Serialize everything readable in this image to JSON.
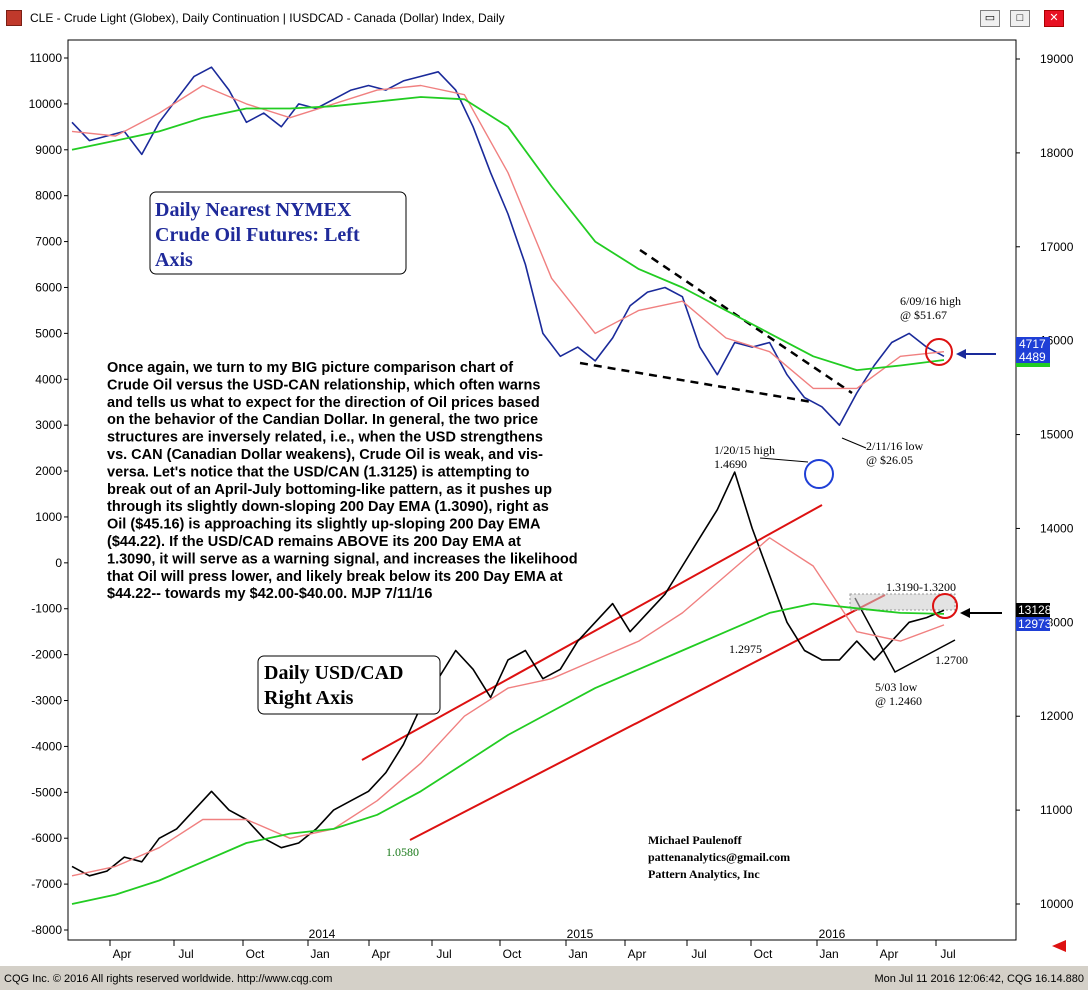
{
  "window": {
    "title": "CLE - Crude Light (Globex), Daily Continuation   |   IUSDCAD - Canada (Dollar) Index, Daily",
    "buttons": [
      "▭",
      "□",
      "✕"
    ]
  },
  "footer": {
    "left": "CQG Inc. © 2016 All rights reserved worldwide.  http://www.cqg.com",
    "right": "Mon Jul 11 2016 12:06:42, CQG 16.14.880"
  },
  "annotations": {
    "oil_box": [
      "Daily Nearest NYMEX",
      "Crude Oil Futures: Left",
      "Axis"
    ],
    "usd_box": [
      "Daily USD/CAD",
      "Right Axis"
    ],
    "commentary": [
      "Once again, we turn to my BIG picture comparison chart of",
      "Crude Oil versus the USD-CAN relationship, which often warns",
      "and tells us what to expect for the direction of Oil prices based",
      "on the behavior of the Candian Dollar. In general, the two price",
      "structures are inversely related, i.e., when the USD strengthens",
      "vs. CAN (Canadian Dollar weakens), Crude Oil is weak, and vis-",
      "versa. Let's notice that the USD/CAN (1.3125) is attempting to",
      "break out of an April-July bottoming-like pattern, as it pushes up",
      "through its slightly down-sloping 200 Day EMA (1.3090), right as",
      "Oil ($45.16) is approaching its slightly up-sloping 200 Day EMA",
      "($44.22).  If the USD/CAD remains ABOVE its 200 Day EMA at",
      "1.3090, it will serve as a warning signal, and increases the likelihood",
      "that Oil will press lower, and likely break below its 200 Day EMA at",
      "$44.22-- towards my $42.00-$40.00. MJP 7/11/16"
    ],
    "high_6_09": [
      "6/09/16 high",
      "@ $51.67"
    ],
    "low_2_11": [
      "2/11/16 low",
      "@ $26.05"
    ],
    "high_1_20": [
      "1/20/15 high",
      "1.4690"
    ],
    "range_1319": "1.3190-1.3200",
    "low_1_2975": "1.2975",
    "level_1_2700": "1.2700",
    "low_5_03": [
      "5/03 low",
      "@ 1.2460"
    ],
    "low_1_0580": "1.0580",
    "signature": [
      "Michael Paulenoff",
      "pattenanalytics@gmail.com",
      "Pattern Analytics, Inc"
    ]
  },
  "badges": {
    "oil_top": "4717",
    "oil_bottom": "4489",
    "usd_top": "13128",
    "usd_bottom": "12973"
  },
  "colors": {
    "oil_line": "#1a2a9a",
    "usd_line": "#000000",
    "ema_short": "#f08080",
    "ema_200": "#22cc22",
    "trend_red": "#dd1111",
    "badge_blue": "#1f3fd6",
    "badge_green": "#22cc22",
    "badge_black": "#000000"
  },
  "chart_data": {
    "type": "line",
    "title": "",
    "x_ticks": [
      "Apr",
      "Jul",
      "Oct",
      "Jan",
      "Apr",
      "Jul",
      "Oct",
      "Jan",
      "Apr",
      "Jul",
      "Oct",
      "Jan",
      "Apr",
      "Jul"
    ],
    "year_labels": [
      "2014",
      "2015",
      "2016"
    ],
    "left_axis": {
      "ticks": [
        11000,
        10000,
        9000,
        8000,
        7000,
        6000,
        5000,
        4000,
        3000,
        2000,
        1000,
        0,
        -1000,
        -2000,
        -3000,
        -4000,
        -5000,
        -6000,
        -7000,
        -8000
      ],
      "ylim": [
        -8500,
        11500
      ]
    },
    "right_axis": {
      "ticks": [
        19000,
        18000,
        17000,
        16000,
        15000,
        14000,
        13000,
        12000,
        11000,
        10000
      ],
      "ylim": [
        9800,
        19200
      ]
    },
    "series": [
      {
        "name": "CLE",
        "axis": "left",
        "x": [
          0,
          0.02,
          0.04,
          0.06,
          0.08,
          0.1,
          0.12,
          0.14,
          0.16,
          0.18,
          0.2,
          0.22,
          0.24,
          0.26,
          0.28,
          0.3,
          0.32,
          0.34,
          0.36,
          0.38,
          0.4,
          0.42,
          0.44,
          0.46,
          0.48,
          0.5,
          0.52,
          0.54,
          0.56,
          0.58,
          0.6,
          0.62,
          0.64,
          0.66,
          0.68,
          0.7,
          0.72,
          0.74,
          0.76,
          0.78,
          0.8,
          0.82,
          0.84,
          0.86,
          0.88,
          0.9,
          0.92,
          0.94,
          0.96,
          0.98,
          1.0
        ],
        "values": [
          9600,
          9200,
          9300,
          9400,
          8900,
          9600,
          10100,
          10600,
          10800,
          10300,
          9600,
          9800,
          9500,
          10000,
          9900,
          10100,
          10300,
          10400,
          10300,
          10500,
          10600,
          10700,
          10300,
          9500,
          8500,
          7600,
          6500,
          5000,
          4500,
          4700,
          4400,
          4900,
          5600,
          5900,
          6000,
          5800,
          4700,
          4100,
          4800,
          4700,
          4800,
          4100,
          3600,
          3400,
          3000,
          3700,
          4300,
          4800,
          5000,
          4700,
          4500
        ]
      },
      {
        "name": "CLE EMA (short)",
        "axis": "left",
        "x": [
          0,
          0.05,
          0.1,
          0.15,
          0.2,
          0.25,
          0.3,
          0.35,
          0.4,
          0.45,
          0.5,
          0.55,
          0.6,
          0.65,
          0.7,
          0.75,
          0.8,
          0.85,
          0.9,
          0.95,
          1.0
        ],
        "values": [
          9400,
          9300,
          9800,
          10400,
          10000,
          9700,
          10000,
          10300,
          10400,
          10200,
          8500,
          6200,
          5000,
          5500,
          5700,
          4900,
          4600,
          3800,
          3800,
          4500,
          4600
        ]
      },
      {
        "name": "CLE 200 Day EMA",
        "axis": "left",
        "x": [
          0,
          0.05,
          0.1,
          0.15,
          0.2,
          0.25,
          0.3,
          0.35,
          0.4,
          0.45,
          0.5,
          0.55,
          0.6,
          0.65,
          0.7,
          0.75,
          0.8,
          0.85,
          0.9,
          0.95,
          1.0
        ],
        "values": [
          9000,
          9200,
          9400,
          9700,
          9900,
          9900,
          9950,
          10050,
          10150,
          10100,
          9500,
          8200,
          7000,
          6400,
          6000,
          5500,
          5000,
          4500,
          4200,
          4300,
          4420
        ]
      },
      {
        "name": "USD/CAD",
        "axis": "right",
        "x": [
          0,
          0.02,
          0.04,
          0.06,
          0.08,
          0.1,
          0.12,
          0.14,
          0.16,
          0.18,
          0.2,
          0.22,
          0.24,
          0.26,
          0.28,
          0.3,
          0.32,
          0.34,
          0.36,
          0.38,
          0.4,
          0.42,
          0.44,
          0.46,
          0.48,
          0.5,
          0.52,
          0.54,
          0.56,
          0.58,
          0.6,
          0.62,
          0.64,
          0.66,
          0.68,
          0.7,
          0.72,
          0.74,
          0.76,
          0.78,
          0.8,
          0.82,
          0.84,
          0.86,
          0.88,
          0.9,
          0.92,
          0.94,
          0.96,
          0.98,
          1.0
        ],
        "values": [
          10400,
          10300,
          10350,
          10500,
          10450,
          10700,
          10800,
          11000,
          11200,
          11000,
          10900,
          10700,
          10600,
          10650,
          10800,
          11000,
          11100,
          11200,
          11400,
          11700,
          12100,
          12400,
          12700,
          12500,
          12200,
          12600,
          12700,
          12400,
          12500,
          12800,
          13000,
          13200,
          12900,
          13100,
          13300,
          13600,
          13900,
          14200,
          14600,
          14000,
          13500,
          13000,
          12700,
          12600,
          12600,
          12800,
          12600,
          12800,
          13000,
          13050,
          13128
        ]
      },
      {
        "name": "USD/CAD EMA (short)",
        "axis": "right",
        "x": [
          0,
          0.05,
          0.1,
          0.15,
          0.2,
          0.25,
          0.3,
          0.35,
          0.4,
          0.45,
          0.5,
          0.55,
          0.6,
          0.65,
          0.7,
          0.75,
          0.8,
          0.85,
          0.9,
          0.95,
          1.0
        ],
        "values": [
          10300,
          10400,
          10600,
          10900,
          10900,
          10700,
          10800,
          11100,
          11500,
          12000,
          12300,
          12400,
          12600,
          12800,
          13100,
          13500,
          13900,
          13600,
          12900,
          12800,
          12973
        ]
      },
      {
        "name": "USD/CAD 200 Day EMA",
        "axis": "right",
        "x": [
          0,
          0.05,
          0.1,
          0.15,
          0.2,
          0.25,
          0.3,
          0.35,
          0.4,
          0.45,
          0.5,
          0.55,
          0.6,
          0.65,
          0.7,
          0.75,
          0.8,
          0.85,
          0.9,
          0.95,
          1.0
        ],
        "values": [
          10000,
          10100,
          10250,
          10450,
          10650,
          10750,
          10800,
          10950,
          11200,
          11500,
          11800,
          12050,
          12300,
          12500,
          12700,
          12900,
          13100,
          13200,
          13150,
          13100,
          13090
        ]
      }
    ]
  }
}
